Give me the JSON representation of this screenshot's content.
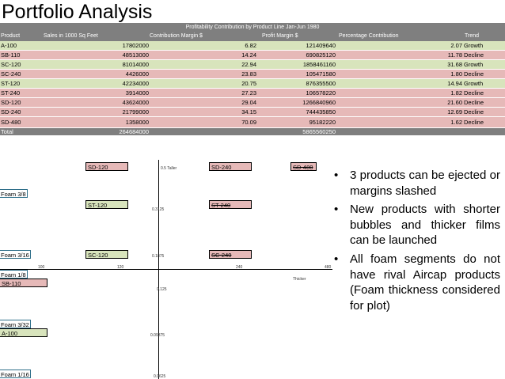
{
  "title": "Portfolio Analysis",
  "table": {
    "caption": "Profitability Contribution by Product Line Jan-Jun 1980",
    "headers": [
      "Product",
      "Sales in 1000 Sq Feet",
      "Contribution Margin $",
      "Profit Margin $",
      "Percentage Contribution",
      "Trend"
    ],
    "rows": [
      {
        "product": "A-100",
        "sales": "17802000",
        "cm": "6.82",
        "pm": "121409640",
        "pct": "2.07",
        "trend": "Growth",
        "color": "#d8e4bc"
      },
      {
        "product": "SB-110",
        "sales": "48513000",
        "cm": "14.24",
        "pm": "690825120",
        "pct": "11.78",
        "trend": "Decline",
        "color": "#e6b9b8"
      },
      {
        "product": "SC-120",
        "sales": "81014000",
        "cm": "22.94",
        "pm": "1858461160",
        "pct": "31.68",
        "trend": "Growth",
        "color": "#d8e4bc"
      },
      {
        "product": "SC-240",
        "sales": "4426000",
        "cm": "23.83",
        "pm": "105471580",
        "pct": "1.80",
        "trend": "Decline",
        "color": "#e6b9b8"
      },
      {
        "product": "ST-120",
        "sales": "42234000",
        "cm": "20.75",
        "pm": "876355500",
        "pct": "14.94",
        "trend": "Growth",
        "color": "#d8e4bc"
      },
      {
        "product": "ST-240",
        "sales": "3914000",
        "cm": "27.23",
        "pm": "106578220",
        "pct": "1.82",
        "trend": "Decline",
        "color": "#e6b9b8"
      },
      {
        "product": "SD-120",
        "sales": "43624000",
        "cm": "29.04",
        "pm": "1266840960",
        "pct": "21.60",
        "trend": "Decline",
        "color": "#e6b9b8"
      },
      {
        "product": "SD-240",
        "sales": "21799000",
        "cm": "34.15",
        "pm": "744435850",
        "pct": "12.69",
        "trend": "Decline",
        "color": "#e6b9b8"
      },
      {
        "product": "SD-480",
        "sales": "1358000",
        "cm": "70.09",
        "pm": "95182220",
        "pct": "1.62",
        "trend": "Decline",
        "color": "#e6b9b8"
      }
    ],
    "total": {
      "label": "Total",
      "sales": "264684000",
      "pm": "5865560250"
    }
  },
  "plot": {
    "x_ticks": [
      "100",
      "120",
      "240",
      "480"
    ],
    "y_ticks": [
      "0.5",
      "0.3125",
      "0.1875",
      "0.125",
      "0.09375",
      "0.0625"
    ],
    "taller_label": "Taller",
    "thicker_label": "Thicker",
    "foams": [
      "Foam 3/8",
      "Foam 3/16",
      "Foam 1/8",
      "Foam 3/32",
      "Foam 1/16"
    ],
    "products": [
      {
        "name": "SD-120",
        "trend": "decline"
      },
      {
        "name": "SD-240",
        "trend": "decline"
      },
      {
        "name": "SD-480",
        "trend": "decline",
        "struck": true
      },
      {
        "name": "ST-120",
        "trend": "growth"
      },
      {
        "name": "ST-240",
        "trend": "decline",
        "struck": true
      },
      {
        "name": "SC-120",
        "trend": "growth"
      },
      {
        "name": "SC-240",
        "trend": "decline",
        "struck": true
      },
      {
        "name": "SB-110",
        "trend": "decline"
      },
      {
        "name": "A-100",
        "trend": "growth"
      }
    ]
  },
  "bullets": [
    "3 products can be ejected or margins slashed",
    "New products with shorter bubbles and thicker films can be launched",
    "All foam segments do not have rival Aircap products (Foam thickness considered for plot)"
  ],
  "colors": {
    "header_gray": "#7f7f7f",
    "growth_green": "#d8e4bc",
    "decline_red": "#e6b9b8",
    "foam_border": "#2f6f8a"
  }
}
